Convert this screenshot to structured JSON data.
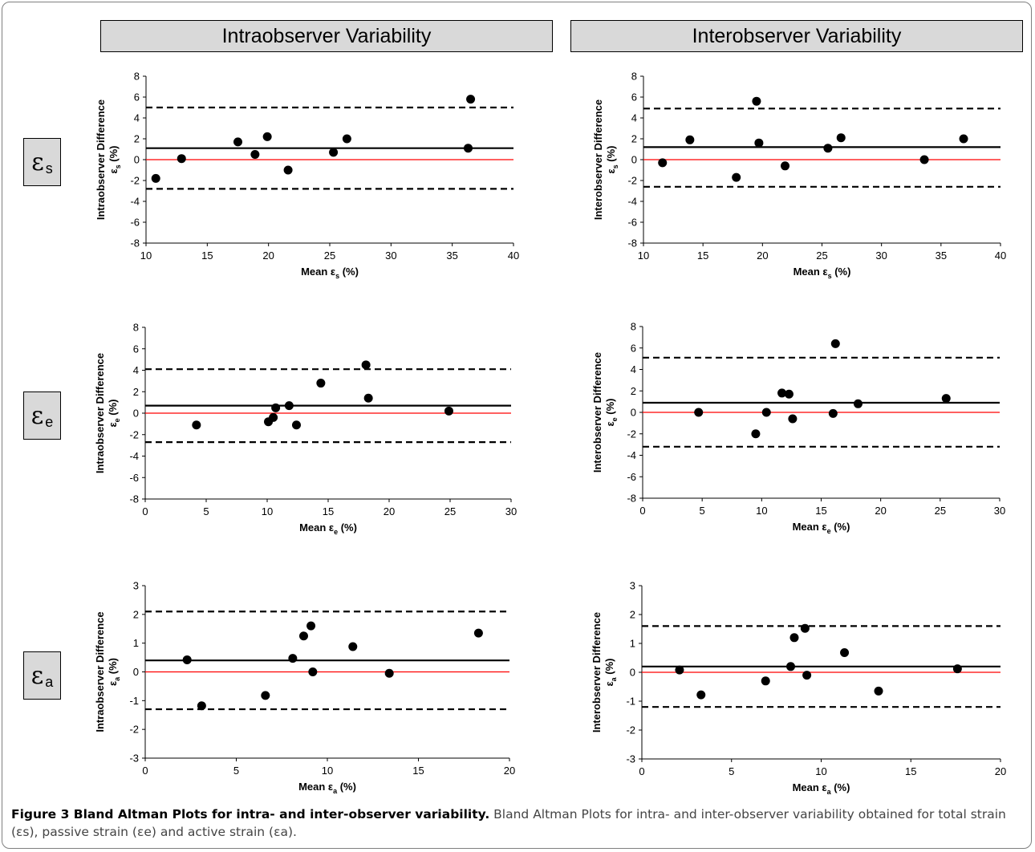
{
  "headers": {
    "intra": "Intraobserver Variability",
    "inter": "Interobserver Variability"
  },
  "row_labels": [
    {
      "symbol": "ε",
      "sub": "s"
    },
    {
      "symbol": "ε",
      "sub": "e"
    },
    {
      "symbol": "ε",
      "sub": "a"
    }
  ],
  "caption": {
    "figure_label": "Figure 3 Bland Altman Plots for intra- and inter-observer variability.",
    "text": " Bland Altman Plots for intra- and inter-observer variability obtained for total strain (εs), passive strain (εe) and active strain (εa)."
  },
  "colors": {
    "zero_line": "#ff0000",
    "data_point": "#000000",
    "mean_line": "#000000"
  },
  "chart_data": [
    {
      "type": "scatter",
      "panel": "intra-es",
      "ylabel": "Intraobserver Difference",
      "ylabel_sub": "εs (%)",
      "xlabel": "Mean εs (%)",
      "xlim": [
        10,
        40
      ],
      "xticks": [
        10,
        15,
        20,
        25,
        30,
        35,
        40
      ],
      "ylim": [
        -8,
        8
      ],
      "yticks": [
        -8,
        -6,
        -4,
        -2,
        0,
        2,
        4,
        6,
        8
      ],
      "mean_bias": 1.1,
      "upper_loa": 5.0,
      "lower_loa": -2.8,
      "zero_line": 0,
      "points": [
        [
          10.8,
          -1.8
        ],
        [
          12.9,
          0.1
        ],
        [
          17.5,
          1.7
        ],
        [
          18.9,
          0.5
        ],
        [
          19.9,
          2.2
        ],
        [
          21.6,
          -1.0
        ],
        [
          25.3,
          0.7
        ],
        [
          26.4,
          2.0
        ],
        [
          36.3,
          1.1
        ],
        [
          36.5,
          5.8
        ]
      ]
    },
    {
      "type": "scatter",
      "panel": "inter-es",
      "ylabel": "Interobserver Difference",
      "ylabel_sub": "εs (%)",
      "xlabel": "Mean εs (%)",
      "xlim": [
        10,
        40
      ],
      "xticks": [
        10,
        15,
        20,
        25,
        30,
        35,
        40
      ],
      "ylim": [
        -8,
        8
      ],
      "yticks": [
        -8,
        -6,
        -4,
        -2,
        0,
        2,
        4,
        6,
        8
      ],
      "mean_bias": 1.2,
      "upper_loa": 4.9,
      "lower_loa": -2.6,
      "zero_line": 0,
      "points": [
        [
          11.6,
          -0.3
        ],
        [
          13.9,
          1.9
        ],
        [
          17.8,
          -1.7
        ],
        [
          19.5,
          5.6
        ],
        [
          19.7,
          1.6
        ],
        [
          21.9,
          -0.6
        ],
        [
          25.5,
          1.1
        ],
        [
          26.6,
          2.1
        ],
        [
          33.6,
          0.0
        ],
        [
          36.9,
          2.0
        ]
      ]
    },
    {
      "type": "scatter",
      "panel": "intra-ee",
      "ylabel": "Intraobserver Difference",
      "ylabel_sub": "εe (%)",
      "xlabel": "Mean εe (%)",
      "xlim": [
        0,
        30
      ],
      "xticks": [
        0,
        5,
        10,
        15,
        20,
        25,
        30
      ],
      "ylim": [
        -8,
        8
      ],
      "yticks": [
        -8,
        -6,
        -4,
        -2,
        0,
        2,
        4,
        6,
        8
      ],
      "mean_bias": 0.7,
      "upper_loa": 4.1,
      "lower_loa": -2.7,
      "zero_line": 0,
      "points": [
        [
          4.2,
          -1.1
        ],
        [
          10.1,
          -0.8
        ],
        [
          10.5,
          -0.4
        ],
        [
          10.7,
          0.5
        ],
        [
          11.8,
          0.7
        ],
        [
          12.4,
          -1.1
        ],
        [
          14.4,
          2.8
        ],
        [
          18.1,
          4.5
        ],
        [
          18.3,
          1.4
        ],
        [
          24.9,
          0.2
        ]
      ]
    },
    {
      "type": "scatter",
      "panel": "inter-ee",
      "ylabel": "Interobserver Difference",
      "ylabel_sub": "εe (%)",
      "xlabel": "Mean εe (%)",
      "xlim": [
        0,
        30
      ],
      "xticks": [
        0,
        5,
        10,
        15,
        20,
        25,
        30
      ],
      "ylim": [
        -8,
        8
      ],
      "yticks": [
        -8,
        -6,
        -4,
        -2,
        0,
        2,
        4,
        6,
        8
      ],
      "mean_bias": 0.9,
      "upper_loa": 5.1,
      "lower_loa": -3.2,
      "zero_line": 0,
      "points": [
        [
          4.7,
          0.0
        ],
        [
          9.5,
          -2.0
        ],
        [
          10.4,
          0.0
        ],
        [
          11.7,
          1.8
        ],
        [
          12.3,
          1.7
        ],
        [
          12.6,
          -0.6
        ],
        [
          16.0,
          -0.1
        ],
        [
          16.2,
          6.4
        ],
        [
          18.1,
          0.8
        ],
        [
          25.5,
          1.3
        ]
      ]
    },
    {
      "type": "scatter",
      "panel": "intra-ea",
      "ylabel": "Intraobserver Difference",
      "ylabel_sub": "εa (%)",
      "xlabel": "Mean εa (%)",
      "xlim": [
        0,
        20
      ],
      "xticks": [
        0,
        5,
        10,
        15,
        20
      ],
      "ylim": [
        -3,
        3
      ],
      "yticks": [
        -3,
        -2,
        -1,
        0,
        1,
        2,
        3
      ],
      "mean_bias": 0.4,
      "upper_loa": 2.1,
      "lower_loa": -1.3,
      "zero_line": 0,
      "points": [
        [
          2.3,
          0.42
        ],
        [
          3.1,
          -1.18
        ],
        [
          6.6,
          -0.82
        ],
        [
          8.1,
          0.47
        ],
        [
          8.7,
          1.25
        ],
        [
          9.1,
          1.6
        ],
        [
          9.2,
          0.0
        ],
        [
          11.4,
          0.88
        ],
        [
          13.4,
          -0.05
        ],
        [
          18.3,
          1.35
        ]
      ]
    },
    {
      "type": "scatter",
      "panel": "inter-ea",
      "ylabel": "Interobserver Difference",
      "ylabel_sub": "εa (%)",
      "xlabel": "Mean εa (%)",
      "xlim": [
        0,
        20
      ],
      "xticks": [
        0,
        5,
        10,
        15,
        20
      ],
      "ylim": [
        -3,
        3
      ],
      "yticks": [
        -3,
        -2,
        -1,
        0,
        1,
        2,
        3
      ],
      "mean_bias": 0.2,
      "upper_loa": 1.6,
      "lower_loa": -1.2,
      "zero_line": 0,
      "points": [
        [
          2.1,
          0.08
        ],
        [
          3.3,
          -0.78
        ],
        [
          6.9,
          -0.3
        ],
        [
          8.3,
          0.2
        ],
        [
          8.5,
          1.2
        ],
        [
          9.1,
          1.52
        ],
        [
          9.2,
          -0.1
        ],
        [
          11.3,
          0.68
        ],
        [
          13.2,
          -0.65
        ],
        [
          17.6,
          0.12
        ]
      ]
    }
  ]
}
